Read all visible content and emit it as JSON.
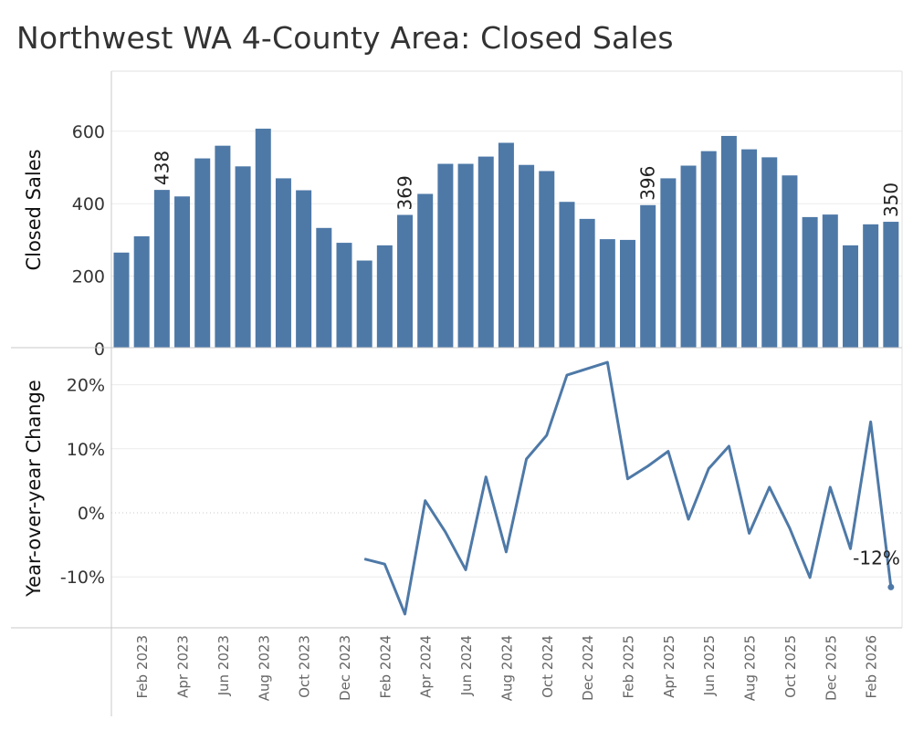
{
  "title": "Northwest WA 4-County Area: Closed Sales",
  "colors": {
    "bar": "#4e79a7",
    "line": "#4e79a7",
    "grid": "#ececec",
    "axis": "#c8c8c8"
  },
  "chart_data": [
    {
      "type": "bar",
      "ylabel": "Closed Sales",
      "ylim": [
        0,
        750
      ],
      "yticks": [
        0,
        200,
        400,
        600
      ],
      "grid": true,
      "categories": [
        "Jan 2023",
        "Feb 2023",
        "Mar 2023",
        "Apr 2023",
        "May 2023",
        "Jun 2023",
        "Jul 2023",
        "Aug 2023",
        "Sep 2023",
        "Oct 2023",
        "Nov 2023",
        "Dec 2023",
        "Jan 2024",
        "Feb 2024",
        "Mar 2024",
        "Apr 2024",
        "May 2024",
        "Jun 2024",
        "Jul 2024",
        "Aug 2024",
        "Sep 2024",
        "Oct 2024",
        "Nov 2024",
        "Dec 2024",
        "Jan 2025",
        "Feb 2025",
        "Mar 2025",
        "Apr 2025",
        "May 2025",
        "Jun 2025",
        "Jul 2025",
        "Aug 2025",
        "Sep 2025",
        "Oct 2025",
        "Nov 2025",
        "Dec 2025",
        "Jan 2026",
        "Feb 2026",
        "Mar 2026"
      ],
      "values": [
        265,
        310,
        438,
        420,
        525,
        560,
        503,
        607,
        470,
        437,
        333,
        292,
        243,
        285,
        369,
        427,
        510,
        510,
        530,
        568,
        507,
        490,
        405,
        358,
        302,
        300,
        396,
        470,
        505,
        545,
        587,
        550,
        528,
        478,
        363,
        370,
        285,
        343,
        350
      ],
      "data_labels": [
        {
          "index": 2,
          "text": "438"
        },
        {
          "index": 14,
          "text": "369"
        },
        {
          "index": 26,
          "text": "396"
        },
        {
          "index": 38,
          "text": "350"
        }
      ]
    },
    {
      "type": "line",
      "ylabel": "Year-over-year Change",
      "ylim": [
        -18,
        25
      ],
      "yticks": [
        -10,
        0,
        10,
        20
      ],
      "ytick_labels": [
        "-10%",
        "0%",
        "10%",
        "20%"
      ],
      "start_index": 12,
      "values": [
        -7.2,
        -8,
        -15.8,
        1.9,
        -3,
        -8.9,
        5.6,
        -6.1,
        8.4,
        12.1,
        21.5,
        22.5,
        23.5,
        5.3,
        7.3,
        9.6,
        -1,
        6.9,
        10.4,
        -3.2,
        4,
        -2.4,
        -10.1,
        4,
        -5.6,
        14.2,
        -11.6
      ],
      "data_labels": [
        {
          "index": 26,
          "text": "-12%"
        }
      ]
    }
  ],
  "x_axis": {
    "tick_labels": [
      "Feb 2023",
      "Apr 2023",
      "Jun 2023",
      "Aug 2023",
      "Oct 2023",
      "Dec 2023",
      "Feb 2024",
      "Apr 2024",
      "Jun 2024",
      "Aug 2024",
      "Oct 2024",
      "Dec 2024",
      "Feb 2025",
      "Apr 2025",
      "Jun 2025",
      "Aug 2025",
      "Oct 2025",
      "Dec 2025",
      "Feb 2026"
    ]
  }
}
